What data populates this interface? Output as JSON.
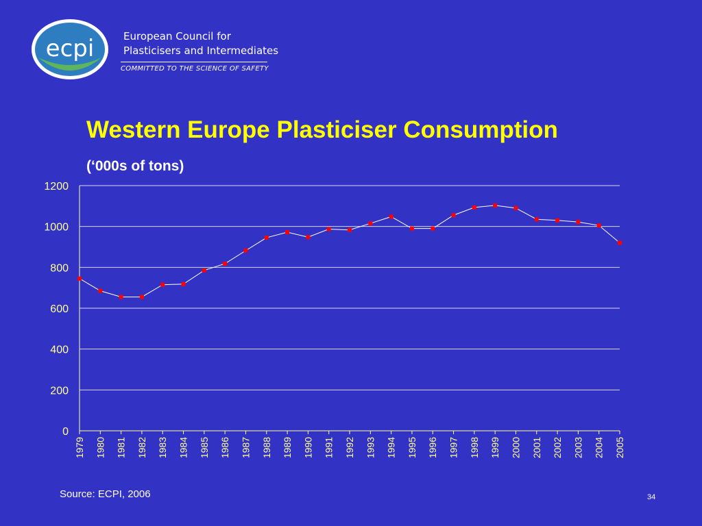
{
  "header": {
    "logo_text": "ecpi",
    "org_name_line1": "European Council for",
    "org_name_line2": "Plasticisers and Intermediates",
    "tagline": "COMMITTED TO THE SCIENCE OF SAFETY"
  },
  "colors": {
    "background": "#3232C4",
    "title": "#FFFF00",
    "axis": "#FFFF99",
    "gridline": "#D8D8F0",
    "line": "#FFFFFF",
    "marker": "#FF0000"
  },
  "chart_data": {
    "type": "line",
    "title": "Western Europe Plasticiser Consumption",
    "subtitle": "(‘000s of tons)",
    "xlabel": "",
    "ylabel": "",
    "categories": [
      "1979",
      "1980",
      "1981",
      "1982",
      "1983",
      "1984",
      "1985",
      "1986",
      "1987",
      "1988",
      "1989",
      "1990",
      "1991",
      "1992",
      "1993",
      "1994",
      "1995",
      "1996",
      "1997",
      "1998",
      "1999",
      "2000",
      "2001",
      "2002",
      "2003",
      "2004",
      "2005"
    ],
    "series": [
      {
        "values": [
          745,
          685,
          655,
          655,
          715,
          718,
          785,
          818,
          882,
          945,
          972,
          948,
          987,
          983,
          1015,
          1048,
          990,
          990,
          1055,
          1093,
          1103,
          1090,
          1035,
          1030,
          1022,
          1005,
          920
        ]
      }
    ],
    "ylim": [
      0,
      1200
    ],
    "yticks": [
      0,
      200,
      400,
      600,
      800,
      1000,
      1200
    ],
    "grid": true,
    "legend": "none"
  },
  "footer": {
    "source": "Source: ECPI, 2006",
    "page_number": "34"
  }
}
